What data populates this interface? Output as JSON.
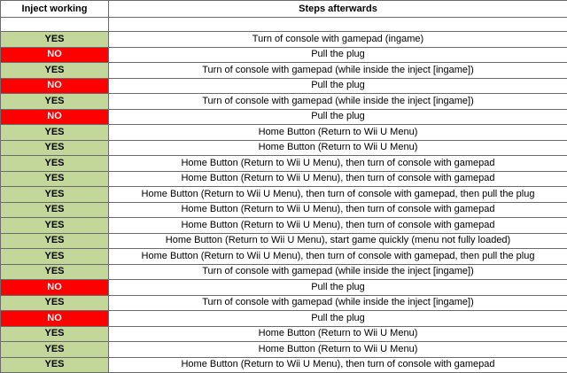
{
  "table": {
    "headers": [
      "Inject working",
      "Steps afterwards"
    ],
    "status_fill": {
      "YES": "#c4d79b",
      "NO": "#ff0000"
    },
    "status_text_color": {
      "YES": "#000000",
      "NO": "#f2f2f2"
    },
    "rows": [
      [
        "YES",
        "Turn of console with gamepad (ingame)"
      ],
      [
        "NO",
        "Pull the plug"
      ],
      [
        "YES",
        "Turn of console with gamepad (while inside the inject [ingame])"
      ],
      [
        "NO",
        "Pull the plug"
      ],
      [
        "YES",
        "Turn of console with gamepad (while inside the inject [ingame])"
      ],
      [
        "NO",
        "Pull the plug"
      ],
      [
        "YES",
        "Home Button (Return to Wii U Menu)"
      ],
      [
        "YES",
        "Home Button (Return to Wii U Menu)"
      ],
      [
        "YES",
        "Home Button (Return to Wii U Menu), then turn of console with gamepad"
      ],
      [
        "YES",
        "Home Button (Return to Wii U Menu), then turn of console with gamepad"
      ],
      [
        "YES",
        "Home Button (Return to Wii U Menu), then turn of console with gamepad, then pull the plug"
      ],
      [
        "YES",
        "Home Button (Return to Wii U Menu), then turn of console with gamepad"
      ],
      [
        "YES",
        "Home Button (Return to Wii U Menu), then turn of console with gamepad"
      ],
      [
        "YES",
        "Home Button (Return to Wii U Menu), start game quickly (menu not fully loaded)"
      ],
      [
        "YES",
        "Home Button (Return to Wii U Menu), then turn of console with gamepad, then pull the plug"
      ],
      [
        "YES",
        "Turn of console with gamepad (while inside the inject [ingame])"
      ],
      [
        "NO",
        "Pull the plug"
      ],
      [
        "YES",
        "Turn of console with gamepad (while inside the inject [ingame])"
      ],
      [
        "NO",
        "Pull the plug"
      ],
      [
        "YES",
        "Home Button (Return to Wii U Menu)"
      ],
      [
        "YES",
        "Home Button (Return to Wii U Menu)"
      ],
      [
        "YES",
        "Home Button (Return to Wii U Menu), then turn of console with gamepad"
      ]
    ]
  }
}
